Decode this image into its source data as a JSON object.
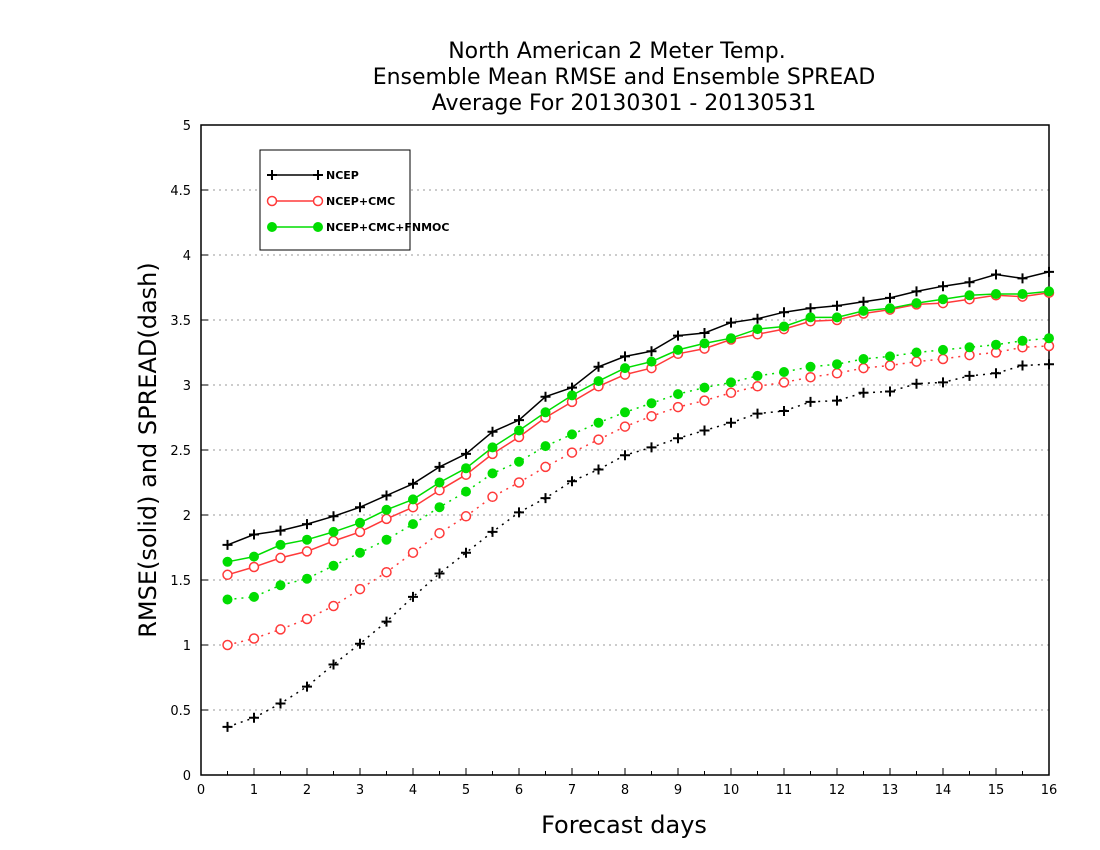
{
  "chart_data": {
    "type": "line",
    "title": [
      "North American 2 Meter Temp.",
      "Ensemble Mean RMSE and Ensemble SPREAD",
      "Average For 20130301 - 20130531"
    ],
    "xlabel": "Forecast days",
    "ylabel": "RMSE(solid) and SPREAD(dash)",
    "xlim": [
      0,
      16
    ],
    "ylim": [
      0,
      5
    ],
    "x_ticks": [
      0,
      1,
      2,
      3,
      4,
      5,
      6,
      7,
      8,
      9,
      10,
      11,
      12,
      13,
      14,
      15,
      16
    ],
    "y_ticks": [
      0,
      0.5,
      1,
      1.5,
      2,
      2.5,
      3,
      3.5,
      4,
      4.5,
      5
    ],
    "x_tick_labels": [
      "0",
      "1",
      "2",
      "3",
      "4",
      "5",
      "6",
      "7",
      "8",
      "9",
      "10",
      "11",
      "12",
      "13",
      "14",
      "15",
      "16"
    ],
    "y_tick_labels": [
      "0",
      "0.5",
      "1",
      "1.5",
      "2",
      "2.5",
      "3",
      "3.5",
      "4",
      "4.5",
      "5"
    ],
    "grid": "horizontal dotted",
    "legend_position": "top-left",
    "legend": [
      "NCEP",
      "NCEP+CMC",
      "NCEP+CMC+FNMOC"
    ],
    "x": [
      0.5,
      1,
      1.5,
      2,
      2.5,
      3,
      3.5,
      4,
      4.5,
      5,
      5.5,
      6,
      6.5,
      7,
      7.5,
      8,
      8.5,
      9,
      9.5,
      10,
      10.5,
      11,
      11.5,
      12,
      12.5,
      13,
      13.5,
      14,
      14.5,
      15,
      15.5,
      16
    ],
    "series": [
      {
        "name": "NCEP",
        "kind": "rmse",
        "color": "#000000",
        "marker": "plus",
        "values": [
          1.77,
          1.85,
          1.88,
          1.93,
          1.99,
          2.06,
          2.15,
          2.24,
          2.37,
          2.47,
          2.64,
          2.73,
          2.91,
          2.98,
          3.14,
          3.22,
          3.26,
          3.38,
          3.4,
          3.48,
          3.51,
          3.56,
          3.59,
          3.61,
          3.64,
          3.67,
          3.72,
          3.76,
          3.79,
          3.85,
          3.82,
          3.87
        ]
      },
      {
        "name": "NCEP+CMC",
        "kind": "rmse",
        "color": "#ff3a3a",
        "marker": "open-circle",
        "values": [
          1.54,
          1.6,
          1.67,
          1.72,
          1.8,
          1.87,
          1.97,
          2.06,
          2.19,
          2.31,
          2.47,
          2.6,
          2.75,
          2.87,
          2.99,
          3.08,
          3.13,
          3.24,
          3.28,
          3.35,
          3.39,
          3.43,
          3.49,
          3.5,
          3.55,
          3.58,
          3.62,
          3.63,
          3.66,
          3.69,
          3.68,
          3.71
        ]
      },
      {
        "name": "NCEP+CMC+FNMOC",
        "kind": "rmse",
        "color": "#00dd00",
        "marker": "filled-circle",
        "values": [
          1.64,
          1.68,
          1.77,
          1.81,
          1.87,
          1.94,
          2.04,
          2.12,
          2.25,
          2.36,
          2.52,
          2.65,
          2.79,
          2.92,
          3.03,
          3.13,
          3.18,
          3.27,
          3.32,
          3.36,
          3.43,
          3.45,
          3.52,
          3.52,
          3.57,
          3.59,
          3.63,
          3.66,
          3.69,
          3.7,
          3.7,
          3.72
        ]
      },
      {
        "name": "NCEP",
        "kind": "spread",
        "color": "#000000",
        "marker": "plus",
        "values": [
          0.37,
          0.44,
          0.55,
          0.68,
          0.85,
          1.01,
          1.18,
          1.37,
          1.55,
          1.71,
          1.87,
          2.02,
          2.13,
          2.26,
          2.35,
          2.46,
          2.52,
          2.59,
          2.65,
          2.71,
          2.78,
          2.8,
          2.87,
          2.88,
          2.94,
          2.95,
          3.01,
          3.02,
          3.07,
          3.09,
          3.15,
          3.16
        ]
      },
      {
        "name": "NCEP+CMC",
        "kind": "spread",
        "color": "#ff3a3a",
        "marker": "open-circle",
        "values": [
          1.0,
          1.05,
          1.12,
          1.2,
          1.3,
          1.43,
          1.56,
          1.71,
          1.86,
          1.99,
          2.14,
          2.25,
          2.37,
          2.48,
          2.58,
          2.68,
          2.76,
          2.83,
          2.88,
          2.94,
          2.99,
          3.02,
          3.06,
          3.09,
          3.13,
          3.15,
          3.18,
          3.2,
          3.23,
          3.25,
          3.29,
          3.3
        ]
      },
      {
        "name": "NCEP+CMC+FNMOC",
        "kind": "spread",
        "color": "#00dd00",
        "marker": "filled-circle",
        "values": [
          1.35,
          1.37,
          1.46,
          1.51,
          1.61,
          1.71,
          1.81,
          1.93,
          2.06,
          2.18,
          2.32,
          2.41,
          2.53,
          2.62,
          2.71,
          2.79,
          2.86,
          2.93,
          2.98,
          3.02,
          3.07,
          3.1,
          3.14,
          3.16,
          3.2,
          3.22,
          3.25,
          3.27,
          3.29,
          3.31,
          3.34,
          3.36
        ]
      }
    ]
  }
}
